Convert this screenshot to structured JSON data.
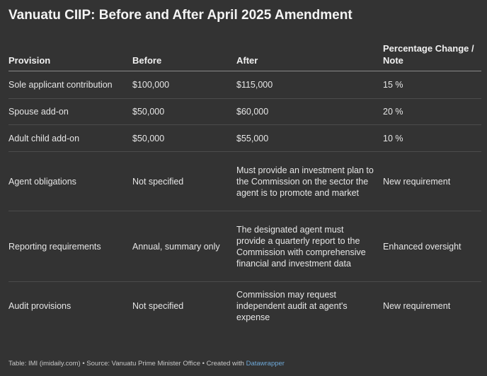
{
  "title": "Vanuatu CIIP: Before and After April 2025 Amendment",
  "columns": [
    "Provision",
    "Before",
    "After",
    "Percentage Change / Note"
  ],
  "rows": [
    {
      "provision": "Sole applicant contribution",
      "before": "$100,000",
      "after": "$115,000",
      "note": "15 %"
    },
    {
      "provision": "Spouse add-on",
      "before": "$50,000",
      "after": "$60,000",
      "note": "20 %"
    },
    {
      "provision": "Adult child add-on",
      "before": "$50,000",
      "after": "$55,000",
      "note": "10 %"
    },
    {
      "provision": "Agent obligations",
      "before": "Not specified",
      "after": "Must provide an investment plan to the Commission on the sector the agent is to promote and market",
      "note": "New requirement"
    },
    {
      "provision": "Reporting requirements",
      "before": "Annual, summary only",
      "after": "The designated agent must provide a quarterly report to the Commission with comprehensive financial and investment data",
      "note": "Enhanced oversight"
    },
    {
      "provision": "Audit provisions",
      "before": "Not specified",
      "after": "Commission may request independent audit at agent's expense",
      "note": "New requirement"
    }
  ],
  "footer": {
    "text": "Table: IMI (imidaily.com) • Source: Vanuatu Prime Minister Office • Created with ",
    "tool": "Datawrapper"
  },
  "colors": {
    "background": "#333333",
    "text": "#ececec",
    "link": "#6ea8d8"
  }
}
